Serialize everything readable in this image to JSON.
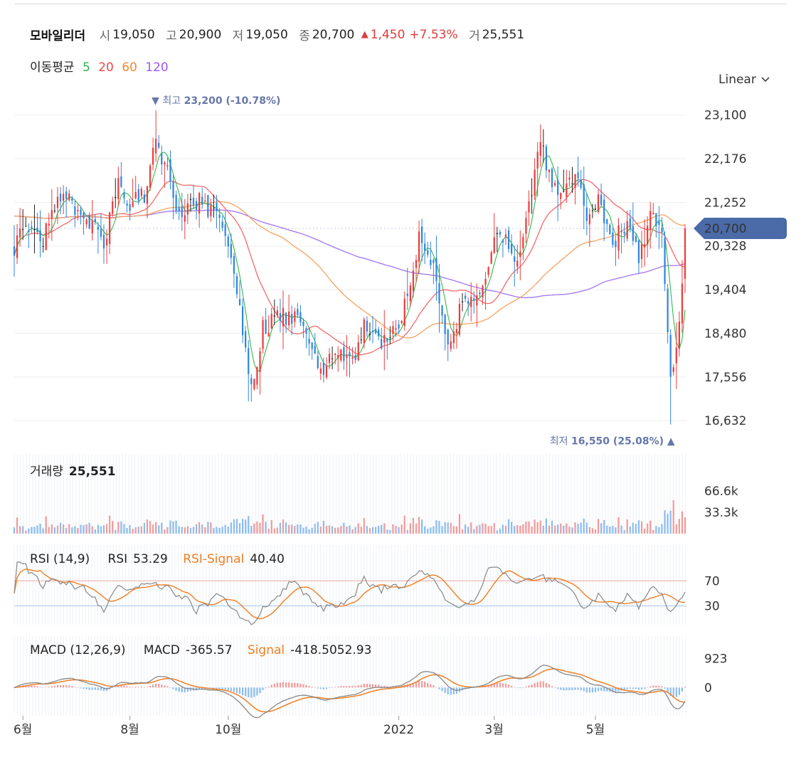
{
  "header": {
    "name": "모바일리더",
    "open_label": "시",
    "open": "19,050",
    "high_label": "고",
    "high": "20,900",
    "low_label": "저",
    "low": "19,050",
    "close_label": "종",
    "close": "20,700",
    "change_arrow": "▲",
    "change": "1,450",
    "change_pct": "+7.53%",
    "volume_label": "거",
    "volume": "25,551"
  },
  "ma": {
    "label": "이동평균",
    "periods": [
      {
        "text": "5",
        "color": "#2db24a"
      },
      {
        "text": "20",
        "color": "#f04848"
      },
      {
        "text": "60",
        "color": "#f18a2c"
      },
      {
        "text": "120",
        "color": "#9b59f0"
      }
    ]
  },
  "scale_mode": "Linear",
  "colors": {
    "up": "#ef3b3b",
    "down": "#2f86e0",
    "neutral": "#222222",
    "ma5": "#38b64a",
    "ma20": "#f46a6a",
    "ma60": "#f4a460",
    "ma120": "#a87cf0",
    "price_tag": "#4a6aa8",
    "annotation": "#6677aa",
    "rsi": "#888888",
    "rsi_signal": "#ef7f23",
    "macd": "#888888",
    "macd_signal": "#ef7f23"
  },
  "chart_data": [
    {
      "type": "candlestick",
      "title": "",
      "y_ticks": [
        "23,100",
        "22,176",
        "21,252",
        "20,328",
        "19,404",
        "18,480",
        "17,556",
        "16,632"
      ],
      "y_tick_values": [
        23100,
        22176,
        21252,
        20328,
        19404,
        18480,
        17556,
        16632
      ],
      "ylim": [
        16500,
        23350
      ],
      "x_ticks": [
        "6월",
        "8월",
        "10월",
        "2022",
        "3월",
        "5월"
      ],
      "x_tick_index": [
        3,
        40,
        74,
        133,
        166,
        201
      ],
      "current_price": "20,700",
      "current_value": 20700,
      "high_annotation": {
        "arrow": "▼",
        "label": "최고",
        "value": "23,200 (-10.78%)",
        "index": 49,
        "price": 23200
      },
      "low_annotation": {
        "label": "최저",
        "value": "16,550 (25.08%)",
        "arrow": "▲",
        "index": 227,
        "price": 16550
      },
      "key_points": [
        [
          0,
          20300
        ],
        [
          3,
          20600
        ],
        [
          10,
          20500
        ],
        [
          17,
          21500
        ],
        [
          22,
          21100
        ],
        [
          31,
          20400
        ],
        [
          36,
          21800
        ],
        [
          40,
          21200
        ],
        [
          45,
          21400
        ],
        [
          49,
          22600
        ],
        [
          53,
          21900
        ],
        [
          57,
          20900
        ],
        [
          63,
          21300
        ],
        [
          68,
          21100
        ],
        [
          74,
          20400
        ],
        [
          79,
          18500
        ],
        [
          82,
          17200
        ],
        [
          86,
          18600
        ],
        [
          93,
          18900
        ],
        [
          100,
          18700
        ],
        [
          106,
          17700
        ],
        [
          111,
          18200
        ],
        [
          117,
          17800
        ],
        [
          121,
          18600
        ],
        [
          128,
          18300
        ],
        [
          133,
          18600
        ],
        [
          137,
          19700
        ],
        [
          140,
          20500
        ],
        [
          145,
          19800
        ],
        [
          150,
          18100
        ],
        [
          155,
          19100
        ],
        [
          159,
          19100
        ],
        [
          163,
          19800
        ],
        [
          168,
          20700
        ],
        [
          174,
          20100
        ],
        [
          178,
          21200
        ],
        [
          182,
          22600
        ],
        [
          186,
          21600
        ],
        [
          190,
          21300
        ],
        [
          194,
          22000
        ],
        [
          198,
          21000
        ],
        [
          202,
          21400
        ],
        [
          207,
          20400
        ],
        [
          212,
          20800
        ],
        [
          216,
          20100
        ],
        [
          220,
          21000
        ],
        [
          224,
          20600
        ],
        [
          227,
          17400
        ],
        [
          230,
          18700
        ],
        [
          232,
          20700
        ]
      ],
      "n_candles": 233
    },
    {
      "type": "bar",
      "title": "거래량",
      "current": "25,551",
      "y_ticks": [
        "66.6k",
        "33.3k"
      ],
      "y_tick_values": [
        66600,
        33300
      ],
      "ylim": [
        0,
        100000
      ]
    },
    {
      "type": "line",
      "title": "RSI (14,9)",
      "series": [
        {
          "name": "RSI",
          "current": "53.29"
        },
        {
          "name": "RSI-Signal",
          "current": "40.40"
        }
      ],
      "levels": [
        {
          "label": "70",
          "value": 70,
          "color": "#e04848"
        },
        {
          "label": "30",
          "value": 30,
          "color": "#3d8be0"
        }
      ],
      "ylim": [
        0,
        100
      ]
    },
    {
      "type": "line",
      "title": "MACD (12,26,9)",
      "series": [
        {
          "name": "MACD",
          "current": "-365.57"
        },
        {
          "name": "Signal",
          "current": "-418.5052.93"
        }
      ],
      "y_ticks": [
        "923",
        "0"
      ],
      "y_tick_values": [
        923,
        0
      ],
      "ylim": [
        -900,
        1500
      ]
    }
  ]
}
